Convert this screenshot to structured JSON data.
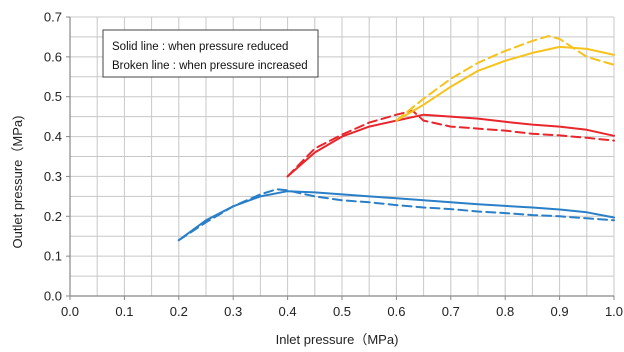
{
  "chart_data": {
    "type": "line",
    "xlabel": "Inlet pressure（MPa)",
    "ylabel": "Outlet pressure（MPa)",
    "xlim": [
      0.0,
      1.0
    ],
    "ylim": [
      0.0,
      0.7
    ],
    "x_ticks": [
      "0.0",
      "0.1",
      "0.2",
      "0.3",
      "0.4",
      "0.5",
      "0.6",
      "0.7",
      "0.8",
      "0.9",
      "1.0"
    ],
    "y_ticks": [
      "0.0",
      "0.1",
      "0.2",
      "0.3",
      "0.4",
      "0.5",
      "0.6",
      "0.7"
    ],
    "x_tick_values": [
      0.0,
      0.1,
      0.2,
      0.3,
      0.4,
      0.5,
      0.6,
      0.7,
      0.8,
      0.9,
      1.0
    ],
    "y_tick_values": [
      0.0,
      0.1,
      0.2,
      0.3,
      0.4,
      0.5,
      0.6,
      0.7
    ],
    "grid": true,
    "legend_text": [
      "Solid line : when pressure reduced",
      "Broken line : when pressure increased"
    ],
    "legend_placement": "top-left",
    "colors": {
      "blue": "#2a7fc9",
      "red": "#e8262c",
      "yellow": "#f7c21b",
      "grid": "#c8c8c8",
      "axis": "#888888"
    },
    "series": [
      {
        "color": "blue",
        "style": "solid",
        "x": [
          0.2,
          0.25,
          0.3,
          0.35,
          0.4,
          0.45,
          0.5,
          0.55,
          0.6,
          0.65,
          0.7,
          0.75,
          0.8,
          0.85,
          0.9,
          0.95,
          1.0
        ],
        "y": [
          0.14,
          0.19,
          0.225,
          0.25,
          0.263,
          0.26,
          0.255,
          0.25,
          0.245,
          0.24,
          0.235,
          0.23,
          0.226,
          0.222,
          0.217,
          0.21,
          0.197
        ]
      },
      {
        "color": "blue",
        "style": "dashed",
        "x": [
          0.2,
          0.25,
          0.3,
          0.35,
          0.38,
          0.4,
          0.45,
          0.5,
          0.55,
          0.6,
          0.65,
          0.7,
          0.75,
          0.8,
          0.85,
          0.9,
          0.95,
          1.0
        ],
        "y": [
          0.14,
          0.185,
          0.225,
          0.255,
          0.268,
          0.265,
          0.25,
          0.24,
          0.235,
          0.228,
          0.222,
          0.218,
          0.212,
          0.208,
          0.203,
          0.2,
          0.195,
          0.19
        ]
      },
      {
        "color": "red",
        "style": "solid",
        "x": [
          0.4,
          0.45,
          0.5,
          0.55,
          0.6,
          0.65,
          0.7,
          0.75,
          0.8,
          0.85,
          0.9,
          0.95,
          1.0
        ],
        "y": [
          0.3,
          0.36,
          0.4,
          0.425,
          0.44,
          0.455,
          0.45,
          0.445,
          0.437,
          0.43,
          0.425,
          0.417,
          0.402
        ]
      },
      {
        "color": "red",
        "style": "dashed",
        "x": [
          0.4,
          0.45,
          0.5,
          0.55,
          0.6,
          0.63,
          0.65,
          0.7,
          0.75,
          0.8,
          0.85,
          0.9,
          0.95,
          1.0
        ],
        "y": [
          0.3,
          0.37,
          0.405,
          0.435,
          0.455,
          0.465,
          0.44,
          0.425,
          0.42,
          0.415,
          0.407,
          0.403,
          0.397,
          0.39
        ]
      },
      {
        "color": "yellow",
        "style": "solid",
        "x": [
          0.6,
          0.65,
          0.7,
          0.75,
          0.8,
          0.85,
          0.9,
          0.95,
          1.0
        ],
        "y": [
          0.44,
          0.48,
          0.525,
          0.565,
          0.59,
          0.61,
          0.625,
          0.62,
          0.605
        ]
      },
      {
        "color": "yellow",
        "style": "dashed",
        "x": [
          0.6,
          0.65,
          0.7,
          0.75,
          0.8,
          0.85,
          0.88,
          0.9,
          0.95,
          1.0
        ],
        "y": [
          0.44,
          0.495,
          0.545,
          0.585,
          0.615,
          0.64,
          0.652,
          0.645,
          0.6,
          0.58
        ]
      }
    ]
  }
}
